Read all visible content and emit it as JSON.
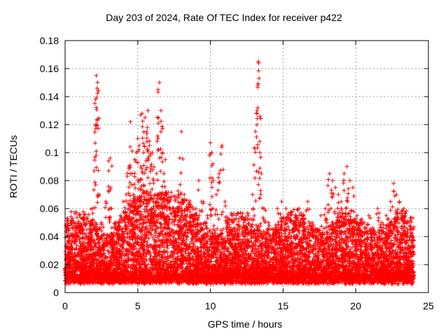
{
  "chart_data": {
    "type": "scatter",
    "title": "Day 203 of 2024, Rate Of TEC Index for receiver p422",
    "xlabel": "GPS time / hours",
    "ylabel": "ROTI / TECUs",
    "xlim": [
      0,
      25
    ],
    "ylim": [
      0,
      0.18
    ],
    "xticks": [
      0,
      5,
      10,
      15,
      20,
      25
    ],
    "yticks": [
      0,
      0.02,
      0.04,
      0.06,
      0.08,
      0.1,
      0.12,
      0.14,
      0.16,
      0.18
    ],
    "xtick_labels": [
      "0",
      "5",
      "10",
      "15",
      "20",
      "25"
    ],
    "ytick_labels": [
      "0",
      "0.02",
      "0.04",
      "0.06",
      "0.08",
      "0.1",
      "0.12",
      "0.14",
      "0.16",
      "0.18"
    ],
    "grid": true,
    "marker": "+",
    "color": "#ff0000",
    "data_range_x": [
      0,
      24
    ],
    "series": [
      {
        "x": [
          0.1,
          0.2,
          0.3,
          0.4,
          0.5,
          0.8,
          1.0,
          1.2,
          1.5,
          1.7,
          1.9,
          2.0,
          2.1,
          2.15,
          2.2,
          2.2,
          2.25,
          2.3,
          2.5,
          2.8,
          3.0,
          3.1,
          3.2,
          3.5,
          3.8,
          4.0,
          4.2,
          4.4,
          4.5,
          4.6,
          4.7,
          4.8,
          4.9,
          5.0,
          5.1,
          5.2,
          5.3,
          5.4,
          5.5,
          5.6,
          5.7,
          5.8,
          5.9,
          6.0,
          6.1,
          6.2,
          6.3,
          6.4,
          6.5,
          6.6,
          6.7,
          6.8,
          6.9,
          7.0,
          7.2,
          7.4,
          7.6,
          7.8,
          8.0,
          8.2,
          8.4,
          8.6,
          8.8,
          9.0,
          9.2,
          9.4,
          9.6,
          9.8,
          10.0,
          10.1,
          10.2,
          10.4,
          10.6,
          10.8,
          11.0,
          11.2,
          11.5,
          11.8,
          12.0,
          12.3,
          12.6,
          12.9,
          13.1,
          13.2,
          13.3,
          13.35,
          13.4,
          13.5,
          13.7,
          14.0,
          14.3,
          14.6,
          14.9,
          15.2,
          15.5,
          15.8,
          16.1,
          16.4,
          16.7,
          17.0,
          17.3,
          17.6,
          17.9,
          18.2,
          18.4,
          18.6,
          18.8,
          19.0,
          19.2,
          19.4,
          19.6,
          19.8,
          20.0,
          20.3,
          20.6,
          20.9,
          21.2,
          21.5,
          21.8,
          22.1,
          22.4,
          22.6,
          22.8,
          23.0,
          23.3,
          23.6,
          23.9
        ],
        "y": [
          0.025,
          0.032,
          0.04,
          0.02,
          0.015,
          0.012,
          0.018,
          0.022,
          0.03,
          0.045,
          0.06,
          0.087,
          0.138,
          0.155,
          0.146,
          0.12,
          0.07,
          0.04,
          0.05,
          0.065,
          0.087,
          0.096,
          0.06,
          0.05,
          0.055,
          0.065,
          0.07,
          0.09,
          0.122,
          0.085,
          0.07,
          0.095,
          0.1,
          0.11,
          0.105,
          0.09,
          0.128,
          0.1,
          0.125,
          0.115,
          0.13,
          0.105,
          0.09,
          0.1,
          0.08,
          0.07,
          0.085,
          0.145,
          0.15,
          0.13,
          0.1,
          0.085,
          0.095,
          0.07,
          0.065,
          0.06,
          0.055,
          0.06,
          0.115,
          0.07,
          0.06,
          0.05,
          0.055,
          0.06,
          0.08,
          0.065,
          0.05,
          0.055,
          0.107,
          0.1,
          0.08,
          0.07,
          0.085,
          0.105,
          0.065,
          0.05,
          0.045,
          0.04,
          0.045,
          0.05,
          0.055,
          0.07,
          0.115,
          0.13,
          0.165,
          0.153,
          0.1,
          0.085,
          0.06,
          0.05,
          0.045,
          0.06,
          0.065,
          0.06,
          0.055,
          0.05,
          0.06,
          0.055,
          0.065,
          0.05,
          0.045,
          0.055,
          0.06,
          0.085,
          0.08,
          0.075,
          0.07,
          0.065,
          0.085,
          0.09,
          0.08,
          0.075,
          0.05,
          0.045,
          0.05,
          0.055,
          0.045,
          0.06,
          0.05,
          0.055,
          0.065,
          0.078,
          0.07,
          0.065,
          0.06,
          0.05,
          0.04
        ]
      }
    ]
  }
}
